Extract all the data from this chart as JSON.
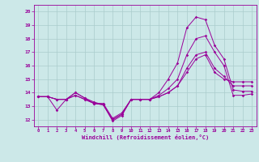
{
  "xlabel": "Windchill (Refroidissement éolien,°C)",
  "ylabel": "",
  "xlim": [
    -0.5,
    23.5
  ],
  "ylim": [
    11.5,
    20.5
  ],
  "yticks": [
    12,
    13,
    14,
    15,
    16,
    17,
    18,
    19,
    20
  ],
  "xticks": [
    0,
    1,
    2,
    3,
    4,
    5,
    6,
    7,
    8,
    9,
    10,
    11,
    12,
    13,
    14,
    15,
    16,
    17,
    18,
    19,
    20,
    21,
    22,
    23
  ],
  "background_color": "#cce8e8",
  "grid_color": "#aacccc",
  "line_color": "#990099",
  "series": [
    [
      13.7,
      13.7,
      12.7,
      13.5,
      14.0,
      13.6,
      13.3,
      13.1,
      11.9,
      12.3,
      13.5,
      13.5,
      13.5,
      14.0,
      15.0,
      16.2,
      18.8,
      19.6,
      19.4,
      17.5,
      16.5,
      14.2,
      14.1,
      14.1
    ],
    [
      13.7,
      13.7,
      13.5,
      13.5,
      14.0,
      13.6,
      13.2,
      13.2,
      12.1,
      12.5,
      13.5,
      13.5,
      13.5,
      13.8,
      14.3,
      15.0,
      16.8,
      18.0,
      18.2,
      17.0,
      16.0,
      13.8,
      13.8,
      13.9
    ],
    [
      13.7,
      13.7,
      13.5,
      13.5,
      13.8,
      13.5,
      13.2,
      13.1,
      12.0,
      12.4,
      13.5,
      13.5,
      13.5,
      13.7,
      14.0,
      14.5,
      15.8,
      16.8,
      17.0,
      15.8,
      15.2,
      14.5,
      14.5,
      14.5
    ],
    [
      13.7,
      13.7,
      13.5,
      13.5,
      13.8,
      13.5,
      13.2,
      13.1,
      12.0,
      12.4,
      13.5,
      13.5,
      13.5,
      13.7,
      14.0,
      14.5,
      15.5,
      16.5,
      16.8,
      15.5,
      15.0,
      14.8,
      14.8,
      14.8
    ]
  ]
}
